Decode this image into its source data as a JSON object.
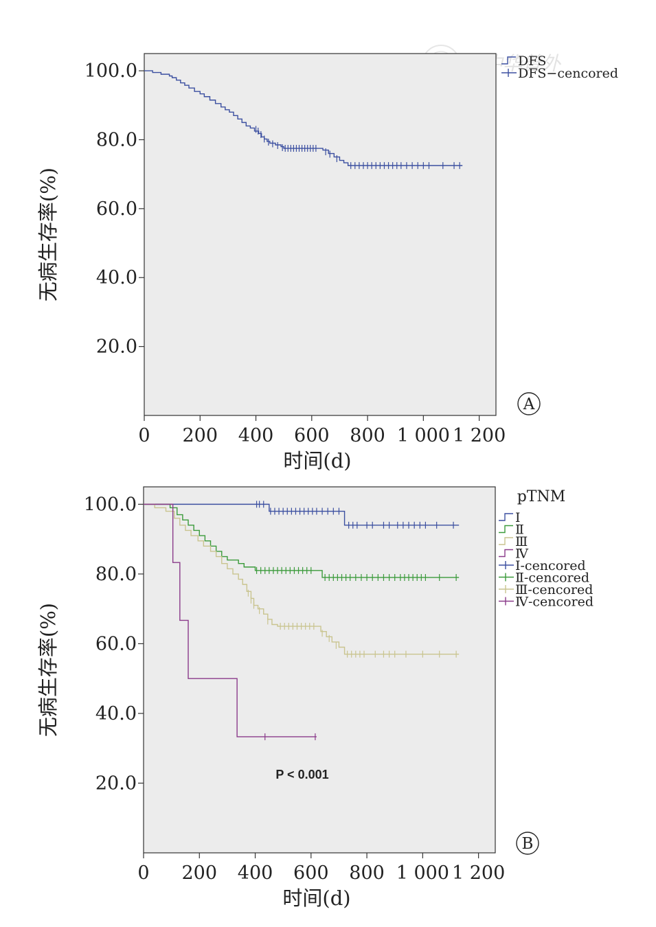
{
  "watermark": "中华普外",
  "chart_data": [
    {
      "panel": "A",
      "type": "line",
      "subtype": "kaplan-meier",
      "xlabel": "时间(d)",
      "ylabel": "无病生存率(%)",
      "xlim": [
        0,
        1260
      ],
      "ylim": [
        0,
        105
      ],
      "xticks": [
        0,
        200,
        400,
        600,
        800,
        1000,
        1200
      ],
      "xtick_labels": [
        "0",
        "200",
        "400",
        "600",
        "800",
        "1 000",
        "1 200"
      ],
      "yticks": [
        20,
        40,
        60,
        80,
        100
      ],
      "ytick_labels": [
        "20.0",
        "40.0",
        "60.0",
        "80.0",
        "100.0"
      ],
      "panel_label": "A",
      "legend_position": "top-right",
      "legend": [
        "DFS",
        "DFS−cencored"
      ],
      "series": [
        {
          "name": "DFS",
          "color": "#3b4fa0",
          "steps": [
            [
              0,
              100
            ],
            [
              20,
              100
            ],
            [
              30,
              99.5
            ],
            [
              60,
              99
            ],
            [
              90,
              98.5
            ],
            [
              100,
              98
            ],
            [
              115,
              97.3
            ],
            [
              130,
              96.5
            ],
            [
              145,
              95.8
            ],
            [
              160,
              95
            ],
            [
              180,
              94
            ],
            [
              200,
              93.3
            ],
            [
              215,
              92.5
            ],
            [
              235,
              91.5
            ],
            [
              255,
              90.5
            ],
            [
              275,
              89.5
            ],
            [
              290,
              88.7
            ],
            [
              305,
              88
            ],
            [
              320,
              87
            ],
            [
              335,
              86
            ],
            [
              350,
              85
            ],
            [
              365,
              84
            ],
            [
              380,
              83.4
            ],
            [
              395,
              82.5
            ],
            [
              410,
              81.8
            ],
            [
              420,
              80.8
            ],
            [
              430,
              80.2
            ],
            [
              440,
              79.5
            ],
            [
              450,
              79
            ],
            [
              470,
              78.5
            ],
            [
              490,
              78
            ],
            [
              500,
              77.5
            ],
            [
              625,
              77.5
            ],
            [
              640,
              77
            ],
            [
              660,
              76
            ],
            [
              680,
              75
            ],
            [
              700,
              74
            ],
            [
              715,
              73.3
            ],
            [
              730,
              72.5
            ],
            [
              1140,
              72.5
            ]
          ],
          "censored": [
            [
              400,
              83
            ],
            [
              408,
              82.5
            ],
            [
              418,
              81.5
            ],
            [
              430,
              80.2
            ],
            [
              445,
              79.3
            ],
            [
              460,
              78.8
            ],
            [
              478,
              78.3
            ],
            [
              495,
              77.7
            ],
            [
              505,
              77.5
            ],
            [
              515,
              77.5
            ],
            [
              525,
              77.5
            ],
            [
              535,
              77.5
            ],
            [
              545,
              77.5
            ],
            [
              555,
              77.5
            ],
            [
              565,
              77.5
            ],
            [
              575,
              77.5
            ],
            [
              585,
              77.5
            ],
            [
              595,
              77.5
            ],
            [
              605,
              77.5
            ],
            [
              615,
              77.5
            ],
            [
              650,
              76.5
            ],
            [
              665,
              75.8
            ],
            [
              690,
              74.5
            ],
            [
              740,
              72.5
            ],
            [
              755,
              72.5
            ],
            [
              770,
              72.5
            ],
            [
              785,
              72.5
            ],
            [
              800,
              72.5
            ],
            [
              815,
              72.5
            ],
            [
              830,
              72.5
            ],
            [
              845,
              72.5
            ],
            [
              860,
              72.5
            ],
            [
              875,
              72.5
            ],
            [
              890,
              72.5
            ],
            [
              905,
              72.5
            ],
            [
              920,
              72.5
            ],
            [
              940,
              72.5
            ],
            [
              960,
              72.5
            ],
            [
              980,
              72.5
            ],
            [
              1000,
              72.5
            ],
            [
              1020,
              72.5
            ],
            [
              1070,
              72.5
            ],
            [
              1110,
              72.5
            ],
            [
              1130,
              72.5
            ]
          ]
        }
      ]
    },
    {
      "panel": "B",
      "type": "line",
      "subtype": "kaplan-meier",
      "xlabel": "时间(d)",
      "ylabel": "无病生存率(%)",
      "xlim": [
        0,
        1260
      ],
      "ylim": [
        0,
        105
      ],
      "xticks": [
        0,
        200,
        400,
        600,
        800,
        1000,
        1200
      ],
      "xtick_labels": [
        "0",
        "200",
        "400",
        "600",
        "800",
        "1 000",
        "1 200"
      ],
      "yticks": [
        20,
        40,
        60,
        80,
        100
      ],
      "ytick_labels": [
        "20.0",
        "40.0",
        "60.0",
        "80.0",
        "100.0"
      ],
      "panel_label": "B",
      "annotation": "P < 0.001",
      "legend_position": "top-right",
      "legend_title": "pTNM",
      "legend": [
        "Ⅰ",
        "Ⅱ",
        "Ⅲ",
        "Ⅳ",
        "Ⅰ-cencored",
        "Ⅱ-cencored",
        "Ⅲ-cencored",
        "Ⅳ-cencored"
      ],
      "series": [
        {
          "name": "Ⅰ",
          "color": "#3b4fa0",
          "steps": [
            [
              0,
              100
            ],
            [
              445,
              100
            ],
            [
              450,
              98
            ],
            [
              715,
              98
            ],
            [
              720,
              94
            ],
            [
              1130,
              94
            ]
          ],
          "censored": [
            [
              405,
              100
            ],
            [
              415,
              100
            ],
            [
              430,
              100
            ],
            [
              455,
              98
            ],
            [
              470,
              98
            ],
            [
              485,
              98
            ],
            [
              500,
              98
            ],
            [
              515,
              98
            ],
            [
              530,
              98
            ],
            [
              545,
              98
            ],
            [
              560,
              98
            ],
            [
              575,
              98
            ],
            [
              590,
              98
            ],
            [
              605,
              98
            ],
            [
              620,
              98
            ],
            [
              640,
              98
            ],
            [
              660,
              98
            ],
            [
              680,
              98
            ],
            [
              700,
              98
            ],
            [
              735,
              94
            ],
            [
              750,
              94
            ],
            [
              765,
              94
            ],
            [
              800,
              94
            ],
            [
              820,
              94
            ],
            [
              860,
              94
            ],
            [
              880,
              94
            ],
            [
              910,
              94
            ],
            [
              930,
              94
            ],
            [
              950,
              94
            ],
            [
              970,
              94
            ],
            [
              990,
              94
            ],
            [
              1010,
              94
            ],
            [
              1050,
              94
            ],
            [
              1110,
              94
            ]
          ]
        },
        {
          "name": "Ⅱ",
          "color": "#3a9a3a",
          "steps": [
            [
              0,
              100
            ],
            [
              70,
              100
            ],
            [
              95,
              99
            ],
            [
              120,
              97
            ],
            [
              140,
              95.5
            ],
            [
              160,
              94
            ],
            [
              180,
              92.5
            ],
            [
              200,
              91
            ],
            [
              220,
              89.5
            ],
            [
              240,
              88
            ],
            [
              260,
              86.5
            ],
            [
              280,
              85
            ],
            [
              300,
              84
            ],
            [
              340,
              83
            ],
            [
              360,
              82
            ],
            [
              400,
              81
            ],
            [
              630,
              81
            ],
            [
              640,
              79
            ],
            [
              1130,
              79
            ]
          ],
          "censored": [
            [
              405,
              81
            ],
            [
              420,
              81
            ],
            [
              435,
              81
            ],
            [
              450,
              81
            ],
            [
              465,
              81
            ],
            [
              480,
              81
            ],
            [
              495,
              81
            ],
            [
              510,
              81
            ],
            [
              525,
              81
            ],
            [
              540,
              81
            ],
            [
              555,
              81
            ],
            [
              570,
              81
            ],
            [
              585,
              81
            ],
            [
              600,
              81
            ],
            [
              650,
              79
            ],
            [
              665,
              79
            ],
            [
              680,
              79
            ],
            [
              695,
              79
            ],
            [
              710,
              79
            ],
            [
              725,
              79
            ],
            [
              740,
              79
            ],
            [
              760,
              79
            ],
            [
              780,
              79
            ],
            [
              800,
              79
            ],
            [
              820,
              79
            ],
            [
              840,
              79
            ],
            [
              860,
              79
            ],
            [
              880,
              79
            ],
            [
              900,
              79
            ],
            [
              920,
              79
            ],
            [
              935,
              79
            ],
            [
              950,
              79
            ],
            [
              965,
              79
            ],
            [
              980,
              79
            ],
            [
              995,
              79
            ],
            [
              1010,
              79
            ],
            [
              1060,
              79
            ],
            [
              1120,
              79
            ]
          ]
        },
        {
          "name": "Ⅲ",
          "color": "#c9c48f",
          "steps": [
            [
              0,
              100
            ],
            [
              40,
              99
            ],
            [
              80,
              98
            ],
            [
              110,
              96
            ],
            [
              130,
              94
            ],
            [
              150,
              92.5
            ],
            [
              170,
              91
            ],
            [
              195,
              89.5
            ],
            [
              215,
              88
            ],
            [
              240,
              86.5
            ],
            [
              260,
              85
            ],
            [
              280,
              83
            ],
            [
              300,
              81.5
            ],
            [
              320,
              80
            ],
            [
              340,
              78.5
            ],
            [
              355,
              77
            ],
            [
              370,
              75
            ],
            [
              385,
              73
            ],
            [
              395,
              71
            ],
            [
              410,
              70
            ],
            [
              430,
              68.5
            ],
            [
              445,
              67
            ],
            [
              460,
              65.5
            ],
            [
              480,
              65
            ],
            [
              620,
              65
            ],
            [
              635,
              63.5
            ],
            [
              655,
              62
            ],
            [
              675,
              60.5
            ],
            [
              700,
              59
            ],
            [
              720,
              57
            ],
            [
              1130,
              57
            ]
          ],
          "censored": [
            [
              375,
              74.5
            ],
            [
              385,
              72.5
            ],
            [
              395,
              71
            ],
            [
              415,
              69.5
            ],
            [
              445,
              66.5
            ],
            [
              490,
              65
            ],
            [
              505,
              65
            ],
            [
              520,
              65
            ],
            [
              535,
              65
            ],
            [
              550,
              65
            ],
            [
              565,
              65
            ],
            [
              580,
              65
            ],
            [
              595,
              65
            ],
            [
              610,
              65
            ],
            [
              640,
              63
            ],
            [
              665,
              61.5
            ],
            [
              690,
              59.5
            ],
            [
              730,
              57
            ],
            [
              745,
              57
            ],
            [
              760,
              57
            ],
            [
              775,
              57
            ],
            [
              790,
              57
            ],
            [
              830,
              57
            ],
            [
              860,
              57
            ],
            [
              880,
              57
            ],
            [
              900,
              57
            ],
            [
              940,
              57
            ],
            [
              1000,
              57
            ],
            [
              1060,
              57
            ],
            [
              1120,
              57
            ]
          ]
        },
        {
          "name": "Ⅳ",
          "color": "#8a3a8a",
          "steps": [
            [
              0,
              100
            ],
            [
              100,
              100
            ],
            [
              105,
              83.3
            ],
            [
              125,
              83.3
            ],
            [
              130,
              66.7
            ],
            [
              155,
              66.7
            ],
            [
              160,
              50
            ],
            [
              330,
              50
            ],
            [
              335,
              33.3
            ],
            [
              620,
              33.3
            ]
          ],
          "censored": [
            [
              435,
              33.3
            ],
            [
              615,
              33.3
            ]
          ]
        }
      ]
    }
  ]
}
